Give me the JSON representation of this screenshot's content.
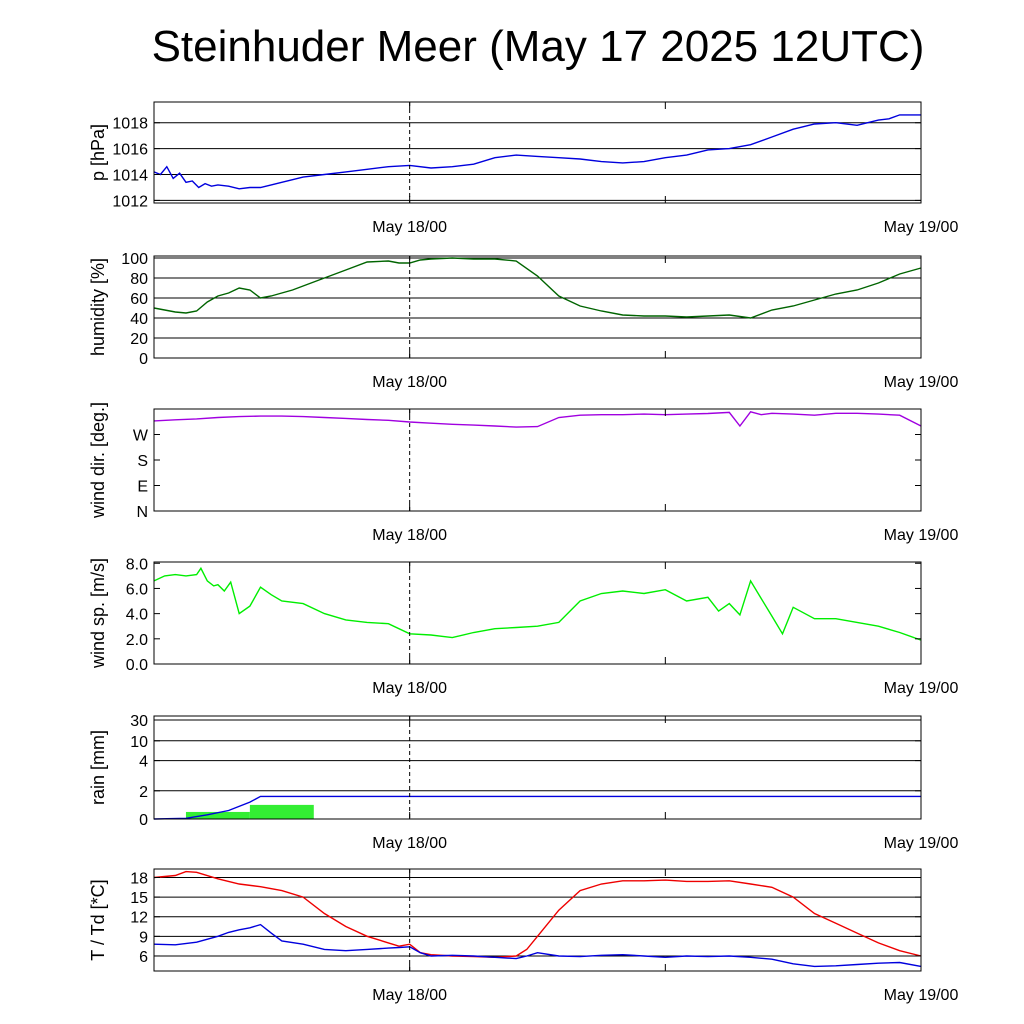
{
  "title": "Steinhuder Meer (May 17 2025 12UTC)",
  "x_axis": {
    "start_hours": 0,
    "end_hours": 36,
    "major_ticks": [
      12,
      36
    ],
    "minor_ticks": [
      0,
      24
    ],
    "tick_labels": [
      "May 18/00",
      "May 19/00"
    ],
    "dashed_marker": 12
  },
  "chart_data": [
    {
      "type": "line",
      "name": "pressure",
      "ylabel": "p [hPa]",
      "ylim": [
        1011.8,
        1019.6
      ],
      "yticks": [
        1012,
        1014,
        1016,
        1018
      ],
      "ytick_labels": [
        "1012",
        "1014",
        "1016",
        "1018"
      ],
      "grid": "horizontal",
      "series": [
        {
          "color": "#0000dd",
          "x": [
            0,
            0.3,
            0.6,
            0.9,
            1.2,
            1.5,
            1.8,
            2.1,
            2.4,
            2.7,
            3,
            3.5,
            4,
            4.5,
            5,
            5.5,
            6,
            6.5,
            7,
            8,
            9,
            10,
            11,
            12,
            13,
            14,
            15,
            16,
            17,
            18,
            19,
            20,
            21,
            22,
            23,
            24,
            25,
            26,
            27,
            28,
            29,
            30,
            31,
            32,
            33,
            33.5,
            34,
            34.5,
            35,
            35.5,
            36
          ],
          "values": [
            1014.2,
            1014.0,
            1014.6,
            1013.7,
            1014.1,
            1013.4,
            1013.5,
            1013.0,
            1013.3,
            1013.1,
            1013.2,
            1013.1,
            1012.9,
            1013.0,
            1013.0,
            1013.2,
            1013.4,
            1013.6,
            1013.8,
            1014.0,
            1014.2,
            1014.4,
            1014.6,
            1014.7,
            1014.5,
            1014.6,
            1014.8,
            1015.3,
            1015.5,
            1015.4,
            1015.3,
            1015.2,
            1015.0,
            1014.9,
            1015.0,
            1015.3,
            1015.5,
            1015.9,
            1016.0,
            1016.3,
            1016.9,
            1017.5,
            1017.9,
            1018.0,
            1017.8,
            1018.0,
            1018.2,
            1018.3,
            1018.6,
            1018.6,
            1018.6
          ]
        }
      ]
    },
    {
      "type": "line",
      "name": "humidity",
      "ylabel": "humidity [%]",
      "ylim": [
        0,
        102
      ],
      "yticks": [
        0,
        20,
        40,
        60,
        80,
        100
      ],
      "ytick_labels": [
        "0",
        "20",
        "40",
        "60",
        "80",
        "100"
      ],
      "grid": "horizontal",
      "series": [
        {
          "color": "#006400",
          "x": [
            0,
            0.5,
            1,
            1.5,
            2,
            2.5,
            3,
            3.5,
            4,
            4.5,
            5,
            5.5,
            6,
            6.5,
            7,
            8,
            9,
            10,
            11,
            11.5,
            12,
            12.5,
            13,
            14,
            15,
            16,
            17,
            18,
            19,
            20,
            21,
            22,
            23,
            24,
            25,
            26,
            27,
            28,
            29,
            30,
            31,
            32,
            33,
            34,
            35,
            36
          ],
          "values": [
            50,
            48,
            46,
            45,
            47,
            56,
            62,
            65,
            70,
            68,
            60,
            62,
            65,
            68,
            72,
            80,
            88,
            96,
            97,
            95,
            95,
            98,
            99,
            100,
            99,
            99,
            97,
            82,
            62,
            52,
            47,
            43,
            42,
            42,
            41,
            42,
            43,
            40,
            48,
            52,
            58,
            64,
            68,
            75,
            84,
            90
          ]
        }
      ]
    },
    {
      "type": "line",
      "name": "wind direction",
      "ylabel": "wind dir. [deg.]",
      "ylim": [
        0,
        360
      ],
      "yticks": [
        0,
        90,
        180,
        270
      ],
      "ytick_labels": [
        "N",
        "E",
        "S",
        "W"
      ],
      "grid": "none",
      "series": [
        {
          "color": "#a000e0",
          "x": [
            0,
            1,
            2,
            3,
            4,
            5,
            6,
            7,
            8,
            9,
            10,
            11,
            12,
            13,
            14,
            15,
            16,
            17,
            18,
            19,
            20,
            21,
            22,
            23,
            24,
            25,
            26,
            27,
            27.5,
            28,
            28.5,
            29,
            30,
            31,
            32,
            33,
            34,
            35,
            36
          ],
          "values": [
            318,
            322,
            325,
            330,
            333,
            335,
            335,
            333,
            330,
            327,
            323,
            320,
            314,
            310,
            306,
            303,
            300,
            296,
            298,
            330,
            338,
            340,
            340,
            342,
            340,
            342,
            344,
            348,
            300,
            350,
            340,
            345,
            342,
            338,
            345,
            345,
            342,
            338,
            300
          ]
        }
      ]
    },
    {
      "type": "line",
      "name": "wind speed",
      "ylabel": "wind sp. [m/s]",
      "ylim": [
        0,
        8.1
      ],
      "yticks": [
        0,
        2,
        4,
        6,
        8
      ],
      "ytick_labels": [
        "0.0",
        "2.0",
        "4.0",
        "6.0",
        "8.0"
      ],
      "grid": "none",
      "series": [
        {
          "color": "#00ee00",
          "x": [
            0,
            0.5,
            1,
            1.5,
            2,
            2.2,
            2.5,
            2.8,
            3,
            3.3,
            3.6,
            4,
            4.5,
            5,
            5.5,
            6,
            7,
            8,
            9,
            10,
            11,
            12,
            13,
            14,
            15,
            16,
            17,
            18,
            19,
            20,
            21,
            22,
            23,
            24,
            25,
            26,
            26.5,
            27,
            27.5,
            28,
            28.5,
            29,
            29.5,
            30,
            31,
            32,
            33,
            34,
            35,
            36
          ],
          "values": [
            6.6,
            7.0,
            7.1,
            7.0,
            7.1,
            7.6,
            6.6,
            6.2,
            6.3,
            5.8,
            6.5,
            4.0,
            4.6,
            6.1,
            5.5,
            5.0,
            4.8,
            4.0,
            3.5,
            3.3,
            3.2,
            2.4,
            2.3,
            2.1,
            2.5,
            2.8,
            2.9,
            3.0,
            3.3,
            5.0,
            5.6,
            5.8,
            5.6,
            5.9,
            5.0,
            5.3,
            4.2,
            4.8,
            3.9,
            6.6,
            5.2,
            3.8,
            2.4,
            4.5,
            3.6,
            3.6,
            3.3,
            3.0,
            2.5,
            1.9
          ]
        }
      ]
    },
    {
      "type": "bar+line",
      "name": "rain",
      "ylabel": "rain [mm]",
      "scale": "nonlinear",
      "yticks": [
        0,
        2,
        4,
        10,
        30
      ],
      "ytick_labels": [
        "0",
        "2",
        "4",
        "10",
        "30"
      ],
      "grid": "horizontal",
      "bars": {
        "color": "#33ee33",
        "items": [
          {
            "x0": 1.5,
            "x1": 4.5,
            "value": 0.5
          },
          {
            "x0": 4.5,
            "x1": 7.5,
            "value": 1.0
          }
        ]
      },
      "series": [
        {
          "name": "accumulated",
          "color": "#0000dd",
          "x": [
            0,
            1.5,
            2.5,
            3.5,
            4.5,
            5,
            36
          ],
          "values": [
            0,
            0.05,
            0.3,
            0.6,
            1.2,
            1.6,
            1.6
          ]
        }
      ]
    },
    {
      "type": "line",
      "name": "temperature and dew point",
      "ylabel": "T / Td [*C]",
      "ylim": [
        3.7,
        19.3
      ],
      "yticks": [
        6,
        9,
        12,
        15,
        18
      ],
      "ytick_labels": [
        "6",
        "9",
        "12",
        "15",
        "18"
      ],
      "grid": "horizontal",
      "series": [
        {
          "color": "#ee0000",
          "x": [
            0,
            1,
            1.5,
            2,
            3,
            4,
            5,
            6,
            7,
            8,
            9,
            10,
            11,
            11.5,
            12,
            12.5,
            13,
            14,
            15,
            16,
            17,
            17.5,
            18,
            19,
            20,
            21,
            22,
            23,
            24,
            25,
            26,
            27,
            28,
            29,
            30,
            31,
            32,
            33,
            34,
            35,
            36
          ],
          "values": [
            18.0,
            18.3,
            18.9,
            18.8,
            17.8,
            17.0,
            16.6,
            16.0,
            15.0,
            12.5,
            10.5,
            9.0,
            8.0,
            7.5,
            7.8,
            6.5,
            6.2,
            6.0,
            5.9,
            5.8,
            6.0,
            7.0,
            9.0,
            13.0,
            16.0,
            17.0,
            17.5,
            17.5,
            17.6,
            17.4,
            17.4,
            17.5,
            17.0,
            16.5,
            15.0,
            12.5,
            11.0,
            9.5,
            8.0,
            6.8,
            6.0
          ]
        },
        {
          "color": "#0000dd",
          "x": [
            0,
            1,
            2,
            3,
            3.5,
            4,
            4.5,
            5,
            5.5,
            6,
            7,
            8,
            9,
            10,
            11,
            11.5,
            12,
            12.5,
            13,
            14,
            15,
            16,
            17,
            17.5,
            18,
            19,
            20,
            21,
            22,
            23,
            24,
            25,
            26,
            27,
            28,
            29,
            30,
            31,
            32,
            33,
            34,
            35,
            36
          ],
          "values": [
            7.8,
            7.7,
            8.1,
            9.0,
            9.6,
            10.0,
            10.3,
            10.8,
            9.5,
            8.3,
            7.8,
            7.0,
            6.8,
            7.0,
            7.2,
            7.3,
            7.4,
            6.5,
            6.0,
            6.1,
            6.0,
            5.8,
            5.6,
            6.0,
            6.5,
            6.0,
            5.9,
            6.1,
            6.2,
            6.0,
            5.8,
            6.0,
            5.9,
            6.0,
            5.8,
            5.5,
            4.8,
            4.4,
            4.5,
            4.7,
            4.9,
            5.0,
            4.4
          ]
        }
      ]
    }
  ]
}
